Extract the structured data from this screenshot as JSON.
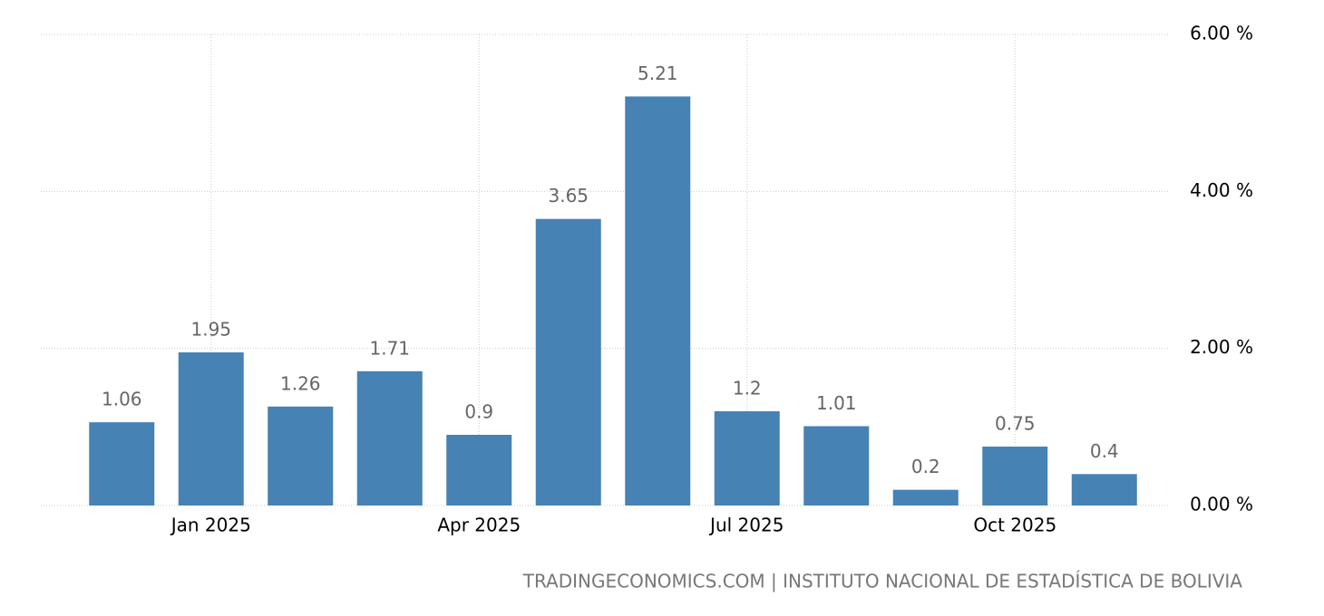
{
  "chart_data": {
    "type": "bar",
    "categories": [
      null,
      "Jan 2025",
      null,
      null,
      "Apr 2025",
      null,
      null,
      "Jul 2025",
      null,
      null,
      "Oct 2025",
      null
    ],
    "values": [
      1.06,
      1.95,
      1.26,
      1.71,
      0.9,
      3.65,
      5.21,
      1.2,
      1.01,
      0.2,
      0.75,
      0.4
    ],
    "color": "#4682b4",
    "ylim": [
      0,
      6
    ],
    "yticks": [
      {
        "value": 0,
        "label": "0.00 %"
      },
      {
        "value": 2,
        "label": "2.00 %"
      },
      {
        "value": 4,
        "label": "4.00 %"
      },
      {
        "value": 6,
        "label": "6.00 %"
      }
    ],
    "grid": true,
    "source": "TRADINGECONOMICS.COM | INSTITUTO NACIONAL DE ESTADÍSTICA DE BOLIVIA"
  }
}
